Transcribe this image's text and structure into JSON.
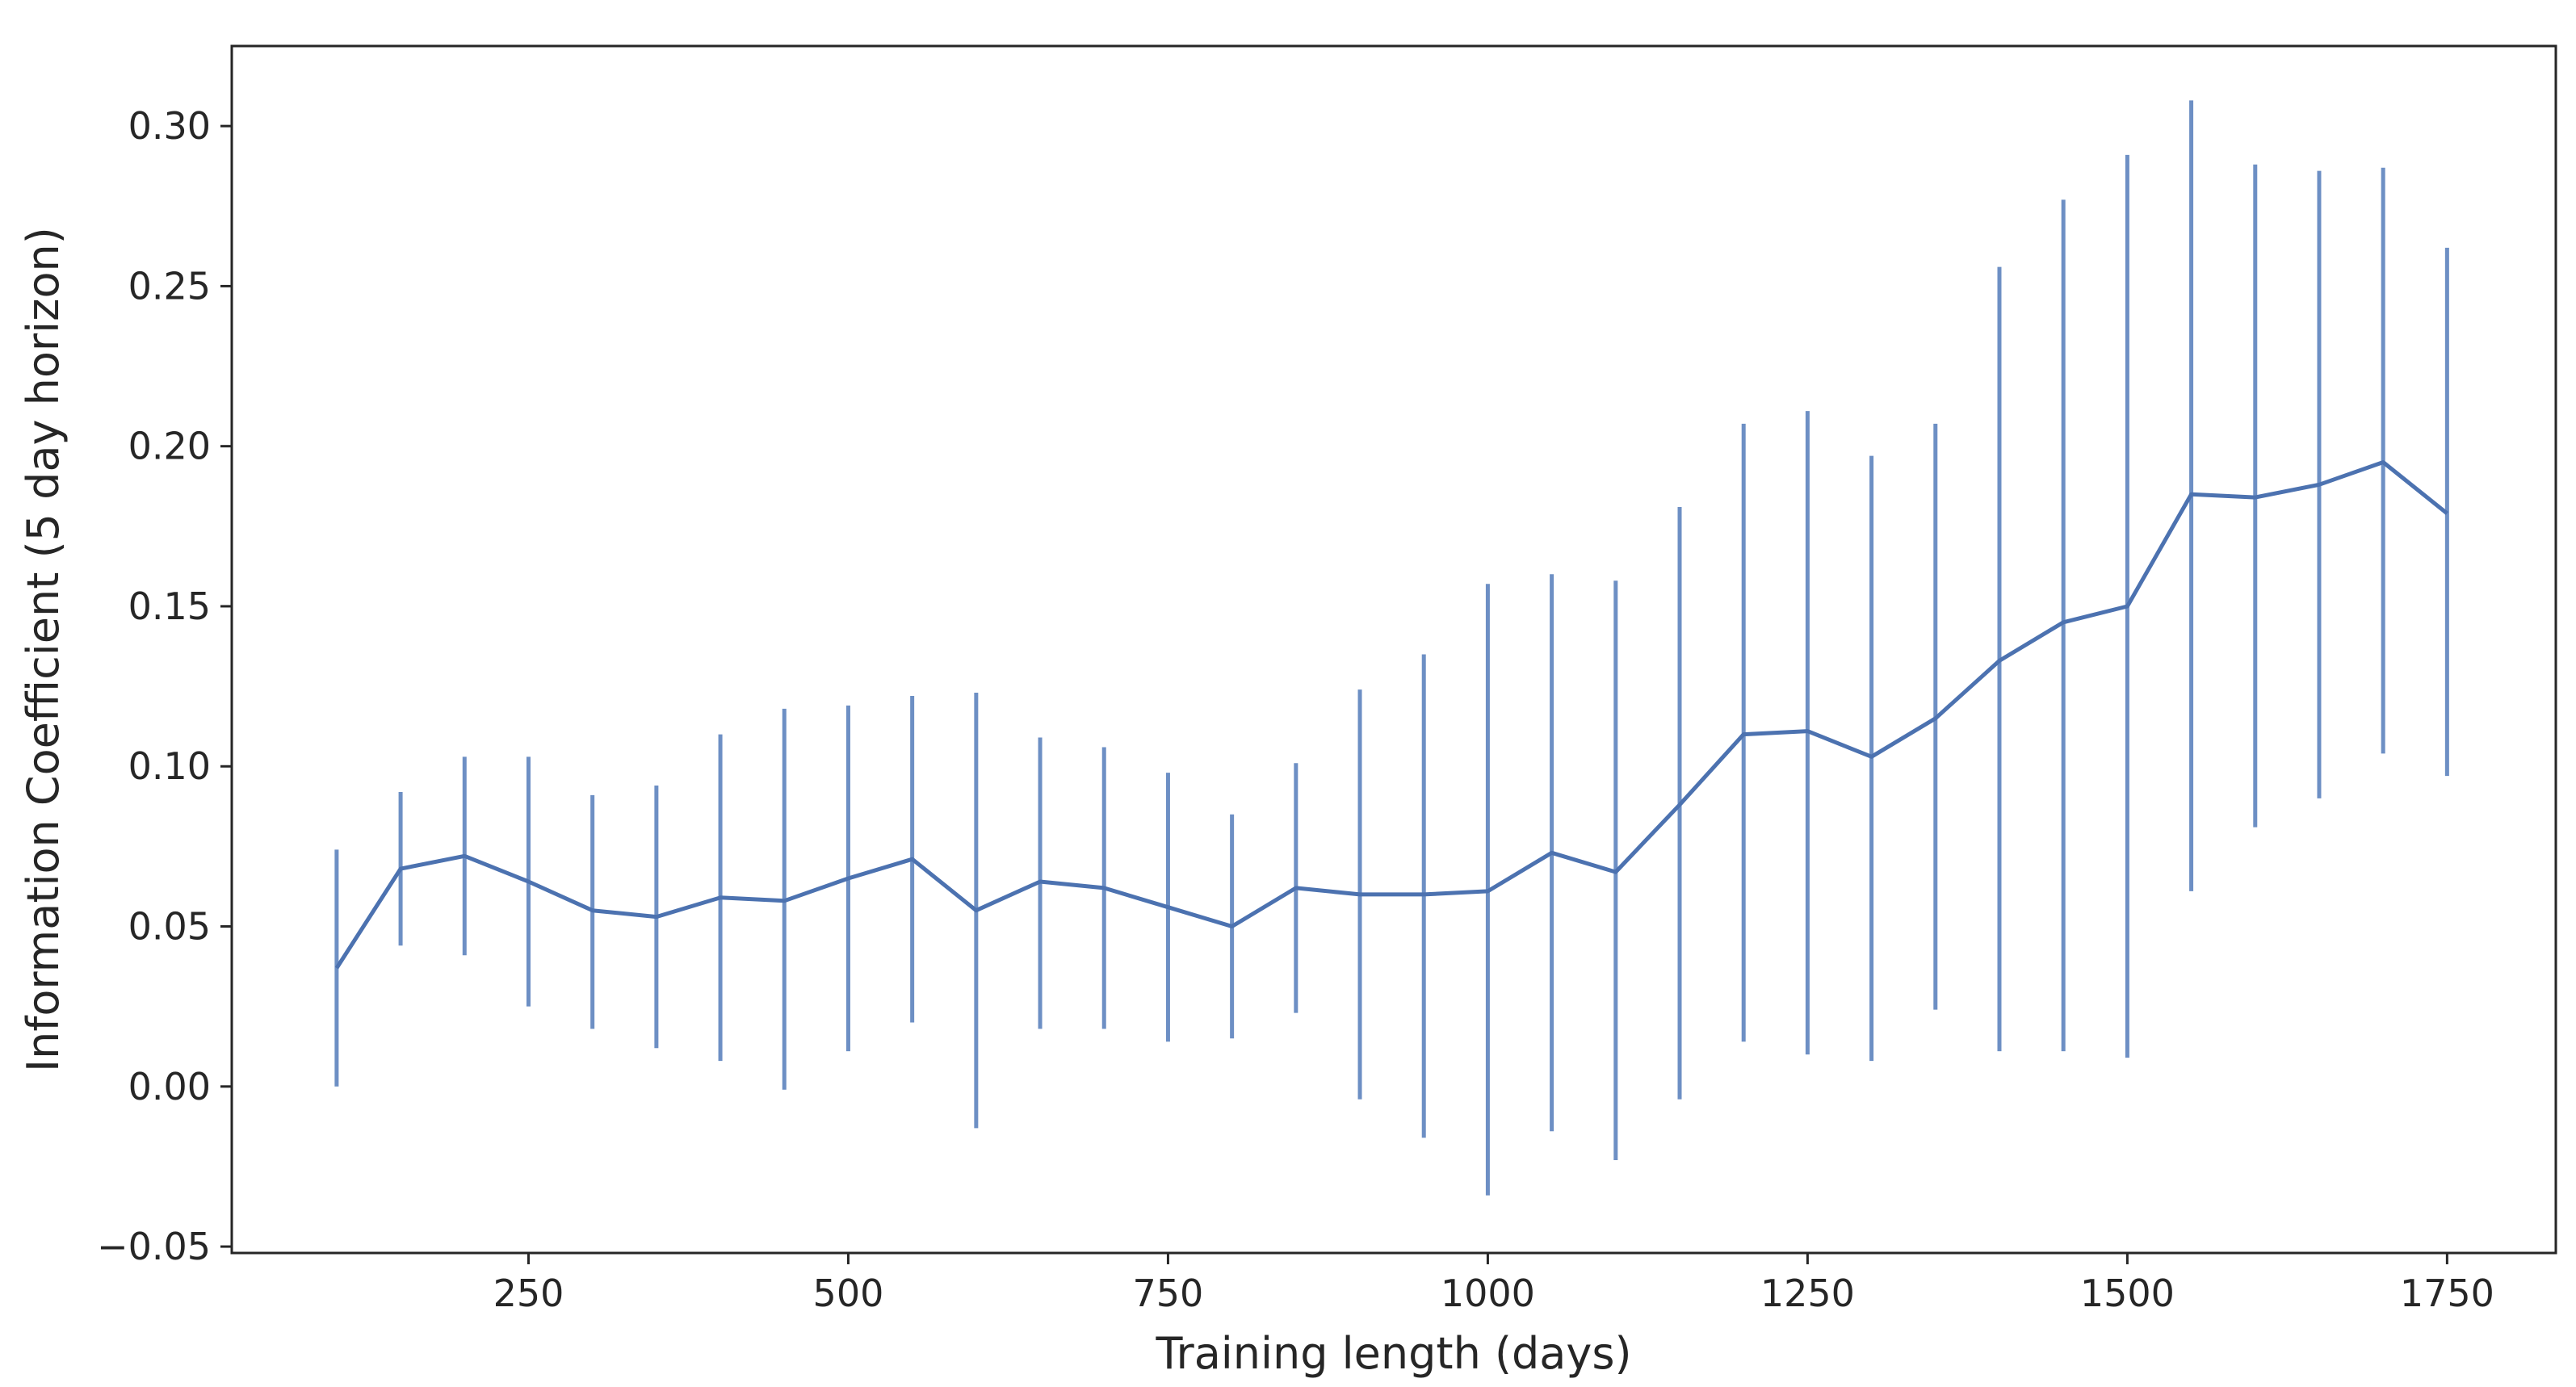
{
  "chart_data": {
    "type": "line",
    "title": "",
    "xlabel": "Training length (days)",
    "ylabel": "Information Coefficient (5 day horizon)",
    "xlim": [
      18,
      1835
    ],
    "ylim": [
      -0.052,
      0.325
    ],
    "xticks": [
      250,
      500,
      750,
      1000,
      1250,
      1500,
      1750
    ],
    "xtick_labels": [
      "250",
      "500",
      "750",
      "1000",
      "1250",
      "1500",
      "1750"
    ],
    "yticks": [
      -0.05,
      0.0,
      0.05,
      0.1,
      0.15,
      0.2,
      0.25,
      0.3
    ],
    "ytick_labels": [
      "−0.05",
      "0.00",
      "0.05",
      "0.10",
      "0.15",
      "0.20",
      "0.25",
      "0.30"
    ],
    "grid": false,
    "legend": "none",
    "colors": {
      "line": "#4c72b0",
      "errorbar": "#6d8fc4",
      "frame": "#262626",
      "text": "#262626"
    },
    "series": [
      {
        "x": [
          100,
          150,
          200,
          250,
          300,
          350,
          400,
          450,
          500,
          550,
          600,
          650,
          700,
          750,
          800,
          850,
          900,
          950,
          1000,
          1050,
          1100,
          1150,
          1200,
          1250,
          1300,
          1350,
          1400,
          1450,
          1500,
          1550,
          1600,
          1650,
          1700,
          1750
        ],
        "y": [
          0.037,
          0.068,
          0.072,
          0.064,
          0.055,
          0.053,
          0.059,
          0.058,
          0.065,
          0.071,
          0.055,
          0.064,
          0.062,
          0.056,
          0.05,
          0.062,
          0.06,
          0.06,
          0.061,
          0.073,
          0.067,
          0.088,
          0.11,
          0.111,
          0.103,
          0.115,
          0.133,
          0.145,
          0.15,
          0.185,
          0.184,
          0.188,
          0.195,
          0.179
        ],
        "y_lower": [
          0.0,
          0.044,
          0.041,
          0.025,
          0.018,
          0.012,
          0.008,
          -0.001,
          0.011,
          0.02,
          -0.013,
          0.018,
          0.018,
          0.014,
          0.015,
          0.023,
          -0.004,
          -0.016,
          -0.034,
          -0.014,
          -0.023,
          -0.004,
          0.014,
          0.01,
          0.008,
          0.024,
          0.011,
          0.011,
          0.009,
          0.061,
          0.081,
          0.09,
          0.104,
          0.097
        ],
        "y_upper": [
          0.074,
          0.092,
          0.103,
          0.103,
          0.091,
          0.094,
          0.11,
          0.118,
          0.119,
          0.122,
          0.123,
          0.109,
          0.106,
          0.098,
          0.085,
          0.101,
          0.124,
          0.135,
          0.157,
          0.16,
          0.158,
          0.181,
          0.207,
          0.211,
          0.197,
          0.207,
          0.256,
          0.277,
          0.291,
          0.308,
          0.288,
          0.286,
          0.287,
          0.262
        ]
      }
    ]
  }
}
